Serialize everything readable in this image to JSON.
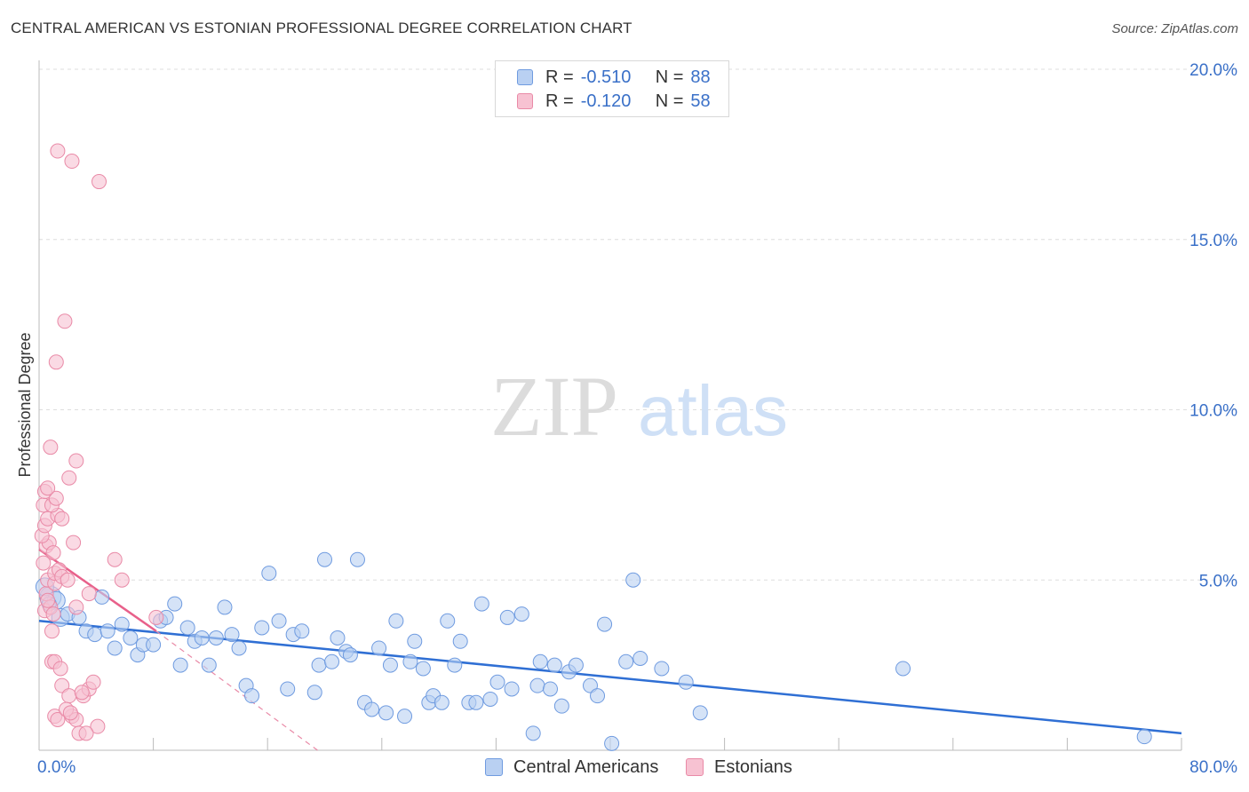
{
  "title": "CENTRAL AMERICAN VS ESTONIAN PROFESSIONAL DEGREE CORRELATION CHART",
  "source": "Source: ZipAtlas.com",
  "watermark": {
    "zip": "ZIP",
    "atlas": "atlas"
  },
  "legend": {
    "series1": {
      "r_label": "R =",
      "r_value": "-0.510",
      "n_label": "N =",
      "n_value": "88"
    },
    "series2": {
      "r_label": "R =",
      "r_value": "-0.120",
      "n_label": "N =",
      "n_value": "58"
    }
  },
  "colors": {
    "blue_fill": "#b9d0f2",
    "blue_stroke": "#6f9be0",
    "blue_line": "#2f6fd4",
    "pink_fill": "#f7c2d2",
    "pink_stroke": "#e98aa7",
    "pink_line": "#e8608a",
    "axis_text": "#3a70c8",
    "grid": "#dedede"
  },
  "chart_data": {
    "type": "scatter",
    "title": "CENTRAL AMERICAN VS ESTONIAN PROFESSIONAL DEGREE CORRELATION CHART",
    "xlabel": "",
    "ylabel": "Professional Degree",
    "xlim": [
      0,
      80
    ],
    "ylim": [
      0,
      20
    ],
    "x_tick_labels": [
      "0.0%",
      "80.0%"
    ],
    "y_ticks": [
      5,
      10,
      15,
      20
    ],
    "y_tick_labels": [
      "5.0%",
      "10.0%",
      "15.0%",
      "20.0%"
    ],
    "grid": true,
    "series": [
      {
        "name": "Central Americans",
        "color": "#6f9be0",
        "r": -0.51,
        "n": 88,
        "trend": {
          "x": [
            0,
            80
          ],
          "y": [
            3.8,
            0.5
          ]
        },
        "points": [
          [
            0.8,
            4.5,
            9
          ],
          [
            0.4,
            4.8,
            7
          ],
          [
            1.2,
            4.4,
            7
          ],
          [
            0.7,
            4.3,
            6
          ],
          [
            1.5,
            3.9,
            7
          ],
          [
            2.0,
            4.0,
            6
          ],
          [
            2.8,
            3.9,
            6
          ],
          [
            3.3,
            3.5,
            6
          ],
          [
            3.9,
            3.4,
            6
          ],
          [
            4.4,
            4.5,
            6
          ],
          [
            4.8,
            3.5,
            6
          ],
          [
            5.3,
            3.0,
            6
          ],
          [
            5.8,
            3.7,
            6
          ],
          [
            6.4,
            3.3,
            6
          ],
          [
            6.9,
            2.8,
            6
          ],
          [
            7.3,
            3.1,
            6
          ],
          [
            8.0,
            3.1,
            6
          ],
          [
            8.5,
            3.8,
            6
          ],
          [
            8.9,
            3.9,
            6
          ],
          [
            9.5,
            4.3,
            6
          ],
          [
            9.9,
            2.5,
            6
          ],
          [
            10.4,
            3.6,
            6
          ],
          [
            10.9,
            3.2,
            6
          ],
          [
            11.4,
            3.3,
            6
          ],
          [
            11.9,
            2.5,
            6
          ],
          [
            12.4,
            3.3,
            6
          ],
          [
            13.0,
            4.2,
            6
          ],
          [
            13.5,
            3.4,
            6
          ],
          [
            14.0,
            3.0,
            6
          ],
          [
            14.5,
            1.9,
            6
          ],
          [
            14.9,
            1.6,
            6
          ],
          [
            15.6,
            3.6,
            6
          ],
          [
            16.1,
            5.2,
            6
          ],
          [
            16.8,
            3.8,
            6
          ],
          [
            17.4,
            1.8,
            6
          ],
          [
            17.8,
            3.4,
            6
          ],
          [
            18.4,
            3.5,
            6
          ],
          [
            19.3,
            1.7,
            6
          ],
          [
            19.6,
            2.5,
            6
          ],
          [
            20.0,
            5.6,
            6
          ],
          [
            20.5,
            2.6,
            6
          ],
          [
            20.9,
            3.3,
            6
          ],
          [
            21.5,
            2.9,
            6
          ],
          [
            21.8,
            2.8,
            6
          ],
          [
            22.3,
            5.6,
            6
          ],
          [
            22.8,
            1.4,
            6
          ],
          [
            23.3,
            1.2,
            6
          ],
          [
            23.8,
            3.0,
            6
          ],
          [
            24.3,
            1.1,
            6
          ],
          [
            24.6,
            2.5,
            6
          ],
          [
            25.0,
            3.8,
            6
          ],
          [
            25.6,
            1.0,
            6
          ],
          [
            26.0,
            2.6,
            6
          ],
          [
            26.3,
            3.2,
            6
          ],
          [
            26.9,
            2.4,
            6
          ],
          [
            27.3,
            1.4,
            6
          ],
          [
            27.6,
            1.6,
            6
          ],
          [
            28.2,
            1.4,
            6
          ],
          [
            28.6,
            3.8,
            6
          ],
          [
            29.1,
            2.5,
            6
          ],
          [
            29.5,
            3.2,
            6
          ],
          [
            30.1,
            1.4,
            6
          ],
          [
            30.6,
            1.4,
            6
          ],
          [
            31.0,
            4.3,
            6
          ],
          [
            31.6,
            1.5,
            6
          ],
          [
            32.1,
            2.0,
            6
          ],
          [
            32.8,
            3.9,
            6
          ],
          [
            33.1,
            1.8,
            6
          ],
          [
            33.8,
            4.0,
            6
          ],
          [
            34.6,
            0.5,
            6
          ],
          [
            34.9,
            1.9,
            6
          ],
          [
            35.1,
            2.6,
            6
          ],
          [
            35.8,
            1.8,
            6
          ],
          [
            36.1,
            2.5,
            6
          ],
          [
            36.6,
            1.3,
            6
          ],
          [
            37.1,
            2.3,
            6
          ],
          [
            37.6,
            2.5,
            6
          ],
          [
            38.6,
            1.9,
            6
          ],
          [
            39.1,
            1.6,
            6
          ],
          [
            39.6,
            3.7,
            6
          ],
          [
            40.1,
            0.2,
            6
          ],
          [
            41.1,
            2.6,
            6
          ],
          [
            41.6,
            5.0,
            6
          ],
          [
            42.1,
            2.7,
            6
          ],
          [
            43.6,
            2.4,
            6
          ],
          [
            45.3,
            2.0,
            6
          ],
          [
            46.3,
            1.1,
            6
          ],
          [
            60.5,
            2.4,
            6
          ],
          [
            77.4,
            0.4,
            6
          ]
        ]
      },
      {
        "name": "Estonians",
        "color": "#e98aa7",
        "r": -0.12,
        "n": 58,
        "trend": {
          "x": [
            0,
            8.2
          ],
          "y": [
            5.9,
            3.5
          ]
        },
        "trend_extension": {
          "x": [
            8.2,
            19.5
          ],
          "y": [
            3.5,
            0
          ]
        },
        "points": [
          [
            0.4,
            4.1,
            6
          ],
          [
            0.5,
            4.6,
            6
          ],
          [
            0.6,
            5.0,
            6
          ],
          [
            0.8,
            4.2,
            6
          ],
          [
            0.9,
            3.5,
            6
          ],
          [
            1.0,
            4.0,
            6
          ],
          [
            1.1,
            4.9,
            6
          ],
          [
            0.3,
            5.5,
            6
          ],
          [
            0.5,
            6.0,
            6
          ],
          [
            0.7,
            6.1,
            6
          ],
          [
            0.2,
            6.3,
            6
          ],
          [
            0.4,
            6.6,
            6
          ],
          [
            0.6,
            6.8,
            6
          ],
          [
            1.3,
            6.9,
            6
          ],
          [
            1.6,
            6.8,
            6
          ],
          [
            0.3,
            7.2,
            6
          ],
          [
            0.9,
            7.2,
            6
          ],
          [
            1.2,
            7.4,
            6
          ],
          [
            0.4,
            7.6,
            6
          ],
          [
            0.6,
            7.7,
            6
          ],
          [
            1.1,
            5.2,
            6
          ],
          [
            1.4,
            5.3,
            6
          ],
          [
            1.6,
            5.1,
            6
          ],
          [
            1.0,
            5.8,
            6
          ],
          [
            0.8,
            8.9,
            6
          ],
          [
            2.1,
            8.0,
            6
          ],
          [
            2.6,
            8.5,
            6
          ],
          [
            1.2,
            11.4,
            6
          ],
          [
            1.8,
            12.6,
            6
          ],
          [
            1.3,
            17.6,
            6
          ],
          [
            2.3,
            17.3,
            6
          ],
          [
            4.2,
            16.7,
            6
          ],
          [
            2.4,
            6.1,
            6
          ],
          [
            5.3,
            5.6,
            6
          ],
          [
            5.8,
            5.0,
            6
          ],
          [
            3.5,
            4.6,
            6
          ],
          [
            2.6,
            4.2,
            6
          ],
          [
            0.9,
            2.6,
            6
          ],
          [
            1.1,
            2.6,
            6
          ],
          [
            1.5,
            2.4,
            6
          ],
          [
            1.6,
            1.9,
            6
          ],
          [
            2.1,
            1.6,
            6
          ],
          [
            2.3,
            1.0,
            6
          ],
          [
            2.6,
            0.9,
            6
          ],
          [
            3.1,
            1.6,
            6
          ],
          [
            3.5,
            1.8,
            6
          ],
          [
            3.8,
            2.0,
            6
          ],
          [
            4.1,
            0.7,
            6
          ],
          [
            1.1,
            1.0,
            6
          ],
          [
            1.3,
            0.9,
            6
          ],
          [
            1.9,
            1.2,
            6
          ],
          [
            2.8,
            0.5,
            6
          ],
          [
            3.3,
            0.5,
            6
          ],
          [
            2.2,
            1.1,
            6
          ],
          [
            3.0,
            1.7,
            6
          ],
          [
            8.2,
            3.9,
            6
          ],
          [
            2.0,
            5.0,
            6
          ],
          [
            0.6,
            4.4,
            6
          ]
        ]
      }
    ]
  }
}
